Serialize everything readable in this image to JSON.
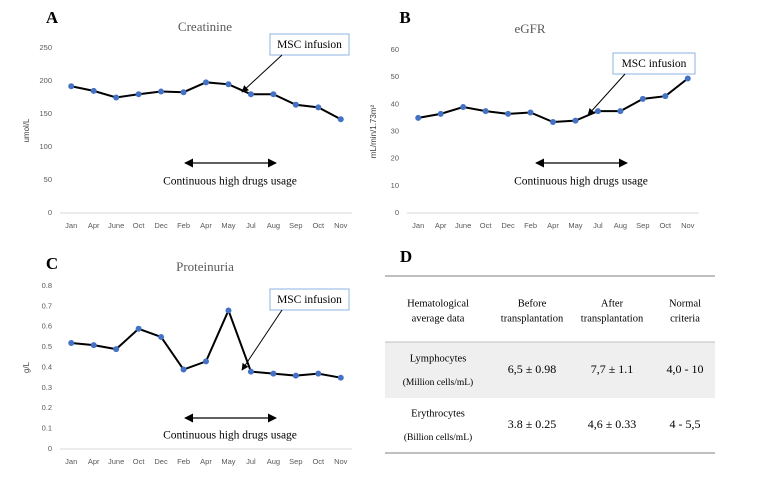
{
  "chart_data": [
    {
      "type": "line",
      "panel": "A",
      "title": "Creatinine",
      "y_label": "umol/L",
      "categories": [
        "Jan",
        "Apr",
        "June",
        "Oct",
        "Dec",
        "Feb",
        "Apr",
        "May",
        "Jul",
        "Aug",
        "Sep",
        "Oct",
        "Nov"
      ],
      "values": [
        192,
        185,
        175,
        180,
        184,
        183,
        198,
        195,
        180,
        180,
        164,
        160,
        142
      ],
      "color": "#4472c4",
      "ylim": [
        0,
        250
      ],
      "yticks": [
        0,
        50,
        100,
        150,
        200,
        250
      ],
      "annotations": [
        "MSC infusion",
        "Continuous high drugs usage"
      ]
    },
    {
      "type": "line",
      "panel": "B",
      "title": "eGFR",
      "y_label": "mL/min/1.73m²",
      "categories": [
        "Jan",
        "Apr",
        "June",
        "Oct",
        "Dec",
        "Feb",
        "Apr",
        "May",
        "Jul",
        "Aug",
        "Sep",
        "Oct",
        "Nov"
      ],
      "values": [
        35,
        36.5,
        39,
        37.5,
        36.5,
        37,
        33.5,
        34,
        37.5,
        37.5,
        42,
        43,
        49.5
      ],
      "color": "#4472c4",
      "ylim": [
        0,
        60
      ],
      "yticks": [
        0,
        10,
        20,
        30,
        40,
        50,
        60
      ],
      "annotations": [
        "MSC infusion",
        "Continuous high drugs usage"
      ]
    },
    {
      "type": "line",
      "panel": "C",
      "title": "Proteinuria",
      "y_label": "g/L",
      "categories": [
        "Jan",
        "Apr",
        "June",
        "Oct",
        "Dec",
        "Feb",
        "Apr",
        "May",
        "Jul",
        "Aug",
        "Sep",
        "Oct",
        "Nov"
      ],
      "values": [
        0.52,
        0.51,
        0.49,
        0.59,
        0.55,
        0.39,
        0.43,
        0.68,
        0.38,
        0.37,
        0.36,
        0.37,
        0.35
      ],
      "color": "#4472c4",
      "ylim": [
        0,
        0.8
      ],
      "yticks": [
        0,
        0.1,
        0.2,
        0.3,
        0.4,
        0.5,
        0.6,
        0.7,
        0.8
      ],
      "annotations": [
        "MSC infusion",
        "Continuous high drugs usage"
      ]
    }
  ],
  "table": {
    "panel": "D",
    "header": [
      [
        "Hematological",
        "average data"
      ],
      [
        "Before",
        "transplantation"
      ],
      [
        "After",
        "transplantation"
      ],
      [
        "Normal",
        "criteria"
      ]
    ],
    "rows": [
      [
        [
          "Lymphocytes",
          "(Million cells/mL)"
        ],
        "6,5 ± 0.98",
        "7,7 ± 1.1",
        "4,0 - 10"
      ],
      [
        [
          "Erythrocytes",
          "(Billion cells/mL)"
        ],
        "3.8 ± 0.25",
        "4,6 ± 0.33",
        "4 - 5,5"
      ]
    ]
  }
}
